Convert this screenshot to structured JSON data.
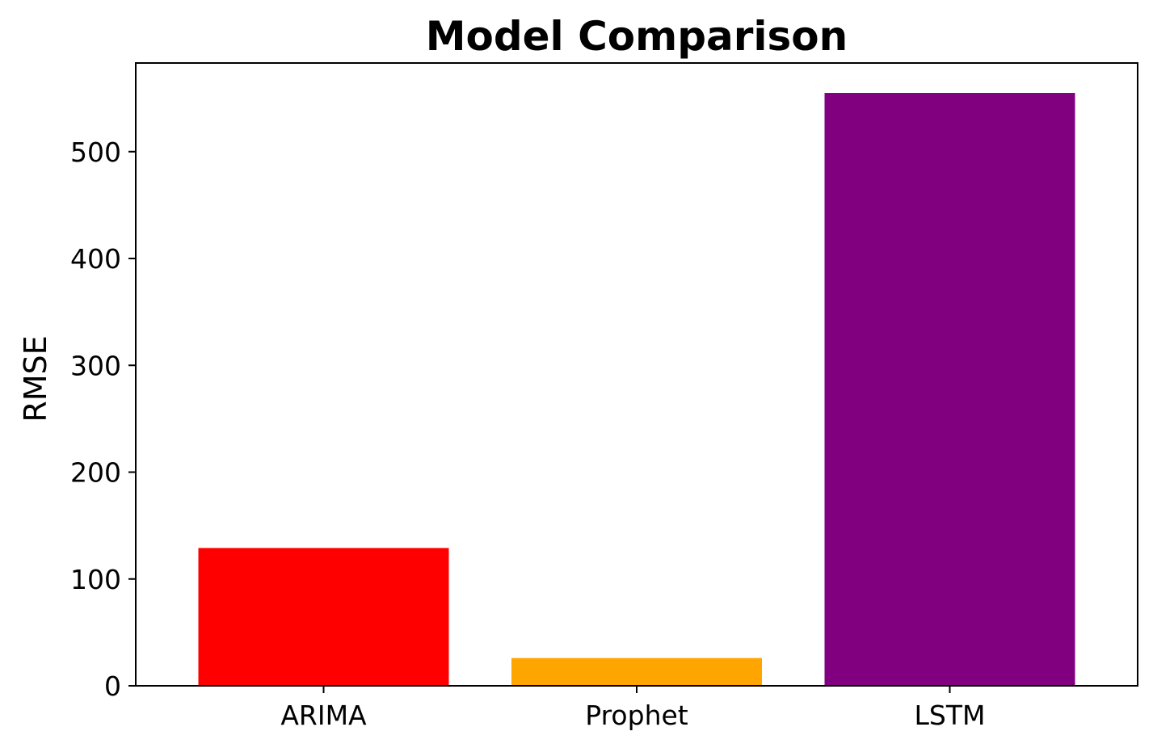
{
  "chart_data": {
    "type": "bar",
    "title": "Model Comparison",
    "xlabel": "",
    "ylabel": "RMSE",
    "categories": [
      "ARIMA",
      "Prophet",
      "LSTM"
    ],
    "values": [
      129,
      26,
      555
    ],
    "colors": [
      "#ff0000",
      "#ffa500",
      "#800080"
    ],
    "ylim": [
      0,
      583
    ],
    "yticks": [
      0,
      100,
      200,
      300,
      400,
      500
    ],
    "ytick_labels": [
      "0",
      "100",
      "200",
      "300",
      "400",
      "500"
    ],
    "grid": false,
    "legend": "none"
  }
}
